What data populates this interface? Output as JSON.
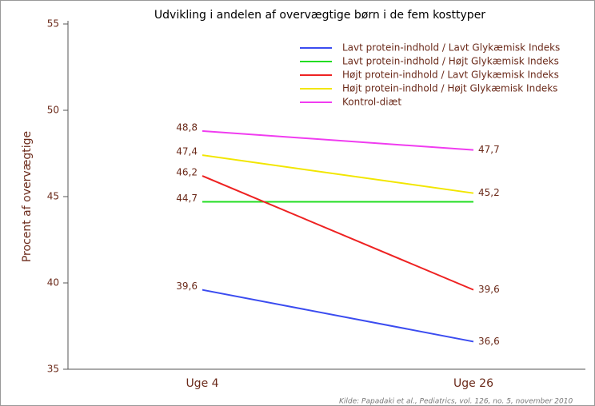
{
  "chart_data": {
    "type": "line",
    "title": "Udvikling i andelen af overvægtige børn i de fem kosttyper",
    "y_label": "Procent af overvægtige",
    "source": "Kilde: Papadaki et al., Pediatrics, vol. 126, no. 5, november 2010",
    "categories": [
      "Uge 4",
      "Uge 26"
    ],
    "ylim": [
      35,
      55
    ],
    "yticks": [
      35,
      40,
      45,
      50,
      55
    ],
    "series": [
      {
        "name": "Lavt protein-indhold / Lavt Glykæmisk Indeks",
        "color": "#3b4cf0",
        "values": [
          39.6,
          36.6
        ],
        "value_labels": [
          "39,6",
          "36,6"
        ]
      },
      {
        "name": "Lavt protein-indhold / Højt Glykæmisk Indeks",
        "color": "#22dd22",
        "values": [
          44.7,
          44.7
        ],
        "value_labels": [
          "44,7",
          null
        ]
      },
      {
        "name": "Højt protein-indhold / Lavt Glykæmisk Indeks",
        "color": "#ee2222",
        "values": [
          46.2,
          39.6
        ],
        "value_labels": [
          "46,2",
          "39,6"
        ]
      },
      {
        "name": "Højt protein-indhold / Højt Glykæmisk Indeks",
        "color": "#f2e600",
        "values": [
          47.4,
          45.2
        ],
        "value_labels": [
          "47,4",
          "45,2"
        ]
      },
      {
        "name": "Kontrol-diæt",
        "color": "#f03cf0",
        "values": [
          48.8,
          47.7
        ],
        "value_labels": [
          "48,8",
          "47,7"
        ]
      }
    ]
  }
}
